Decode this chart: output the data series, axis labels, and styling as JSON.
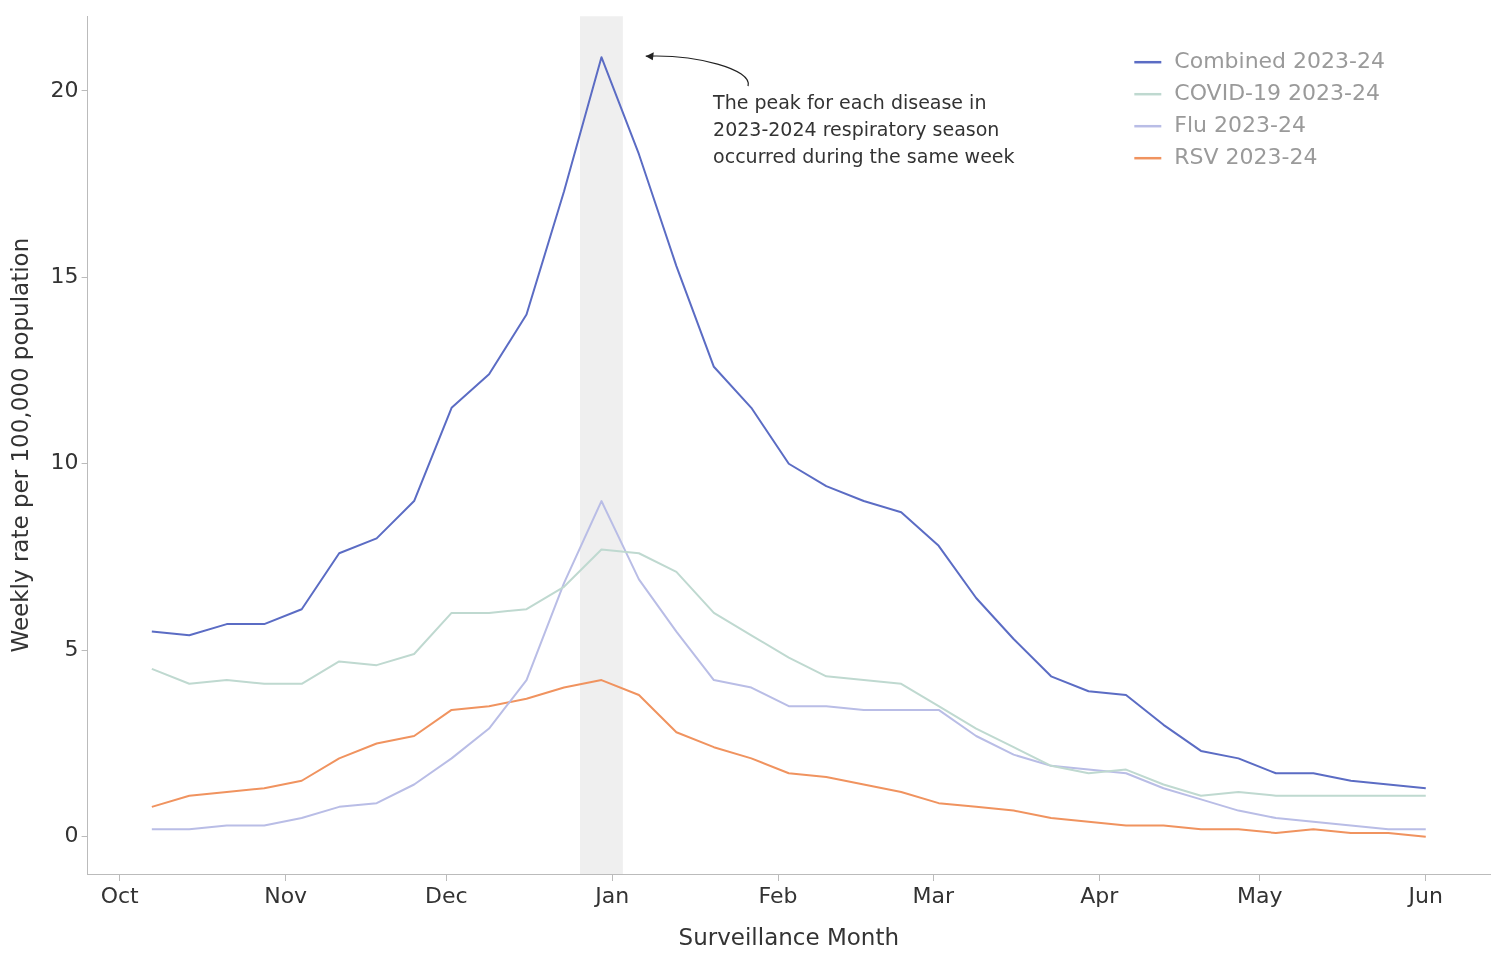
{
  "chart_data": {
    "type": "line",
    "xlabel": "Surveillance Month",
    "ylabel": "Weekly rate per 100,000 population",
    "x": [
      "2023-10-07",
      "2023-10-14",
      "2023-10-21",
      "2023-10-28",
      "2023-11-04",
      "2023-11-11",
      "2023-11-18",
      "2023-11-25",
      "2023-12-02",
      "2023-12-09",
      "2023-12-16",
      "2023-12-23",
      "2023-12-30",
      "2024-01-06",
      "2024-01-13",
      "2024-01-20",
      "2024-01-27",
      "2024-02-03",
      "2024-02-10",
      "2024-02-17",
      "2024-02-24",
      "2024-03-02",
      "2024-03-09",
      "2024-03-16",
      "2024-03-23",
      "2024-03-30",
      "2024-04-06",
      "2024-04-13",
      "2024-04-20",
      "2024-04-27",
      "2024-05-04",
      "2024-05-11",
      "2024-05-18",
      "2024-05-25",
      "2024-06-01"
    ],
    "series": [
      {
        "name": "Combined 2023-24",
        "color": "#5b6cc4",
        "values": [
          5.5,
          5.4,
          5.7,
          5.7,
          6.1,
          7.6,
          8.0,
          9.0,
          11.5,
          12.4,
          14.0,
          17.3,
          20.9,
          18.3,
          15.3,
          12.6,
          11.5,
          10.0,
          9.4,
          9.0,
          8.7,
          7.8,
          6.4,
          5.3,
          4.3,
          3.9,
          3.8,
          3.0,
          2.3,
          2.1,
          1.7,
          1.7,
          1.5,
          1.4,
          1.3
        ]
      },
      {
        "name": "COVID-19 2023-24",
        "color": "#bfd9d0",
        "values": [
          4.5,
          4.1,
          4.2,
          4.1,
          4.1,
          4.7,
          4.6,
          4.9,
          6.0,
          6.0,
          6.1,
          6.7,
          7.7,
          7.6,
          7.1,
          6.0,
          5.4,
          4.8,
          4.3,
          4.2,
          4.1,
          3.5,
          2.9,
          2.4,
          1.9,
          1.7,
          1.8,
          1.4,
          1.1,
          1.2,
          1.1,
          1.1,
          1.1,
          1.1,
          1.1
        ]
      },
      {
        "name": "Flu 2023-24",
        "color": "#b9bde6",
        "values": [
          0.2,
          0.2,
          0.3,
          0.3,
          0.5,
          0.8,
          0.9,
          1.4,
          2.1,
          2.9,
          4.2,
          6.8,
          9.0,
          6.9,
          5.5,
          4.2,
          4.0,
          3.5,
          3.5,
          3.4,
          3.4,
          3.4,
          2.7,
          2.2,
          1.9,
          1.8,
          1.7,
          1.3,
          1.0,
          0.7,
          0.5,
          0.4,
          0.3,
          0.2,
          0.2
        ]
      },
      {
        "name": "RSV 2023-24",
        "color": "#f0935f",
        "values": [
          0.8,
          1.1,
          1.2,
          1.3,
          1.5,
          2.1,
          2.5,
          2.7,
          3.4,
          3.5,
          3.7,
          4.0,
          4.2,
          3.8,
          2.8,
          2.4,
          2.1,
          1.7,
          1.6,
          1.4,
          1.2,
          0.9,
          0.8,
          0.7,
          0.5,
          0.4,
          0.3,
          0.3,
          0.2,
          0.2,
          0.1,
          0.2,
          0.1,
          0.1,
          0.0
        ]
      }
    ],
    "xlim": [
      "2023-09-25",
      "2024-06-13"
    ],
    "xticks": [
      {
        "value": "2023-10-01",
        "label": "Oct"
      },
      {
        "value": "2023-11-01",
        "label": "Nov"
      },
      {
        "value": "2023-12-01",
        "label": "Dec"
      },
      {
        "value": "2024-01-01",
        "label": "Jan"
      },
      {
        "value": "2024-02-01",
        "label": "Feb"
      },
      {
        "value": "2024-03-01",
        "label": "Mar"
      },
      {
        "value": "2024-04-01",
        "label": "Apr"
      },
      {
        "value": "2024-05-01",
        "label": "May"
      },
      {
        "value": "2024-06-01",
        "label": "Jun"
      }
    ],
    "ylim": [
      -1,
      22
    ],
    "yticks": [
      0,
      5,
      10,
      15,
      20
    ],
    "bands": [
      {
        "axis": "x",
        "from": "2023-12-26",
        "to": "2024-01-03",
        "color": "#efefef"
      }
    ],
    "annotations": [
      "The peak for each disease in\n2023-2024 respiratory season\noccurred during the same week"
    ],
    "grid": false,
    "legend": "top right",
    "marker": "none",
    "line_style": "solid"
  }
}
